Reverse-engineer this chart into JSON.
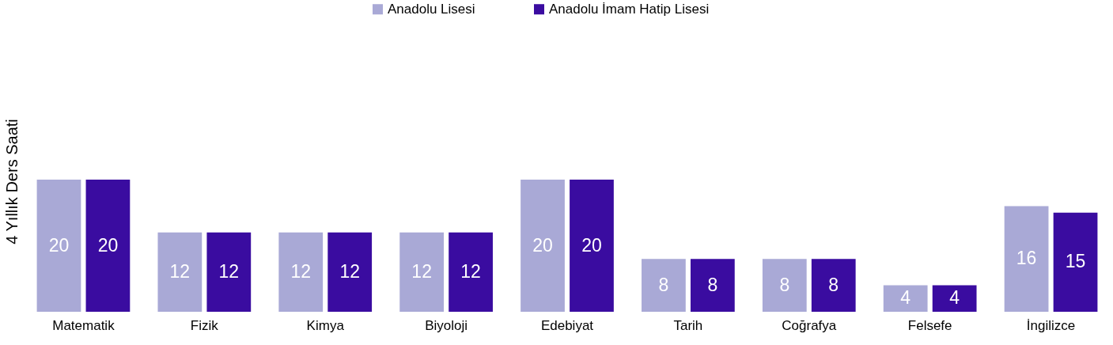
{
  "chart_data": {
    "type": "bar",
    "ylabel": "4 Yıllık  Ders Saati",
    "categories": [
      "Matematik",
      "Fizik",
      "Kimya",
      "Biyoloji",
      "Edebiyat",
      "Tarih",
      "Coğrafya",
      "Felsefe",
      "İngilizce"
    ],
    "series": [
      {
        "name": "Anadolu Lisesi",
        "color": "#a9a9d6",
        "values": [
          20,
          12,
          12,
          12,
          20,
          8,
          8,
          4,
          16
        ]
      },
      {
        "name": "Anadolu İmam Hatip Lisesi",
        "color": "#3a0ca0",
        "values": [
          20,
          12,
          12,
          12,
          20,
          8,
          8,
          4,
          15
        ]
      }
    ],
    "data_labels": true,
    "legend": "top",
    "tick_labels": "x"
  }
}
